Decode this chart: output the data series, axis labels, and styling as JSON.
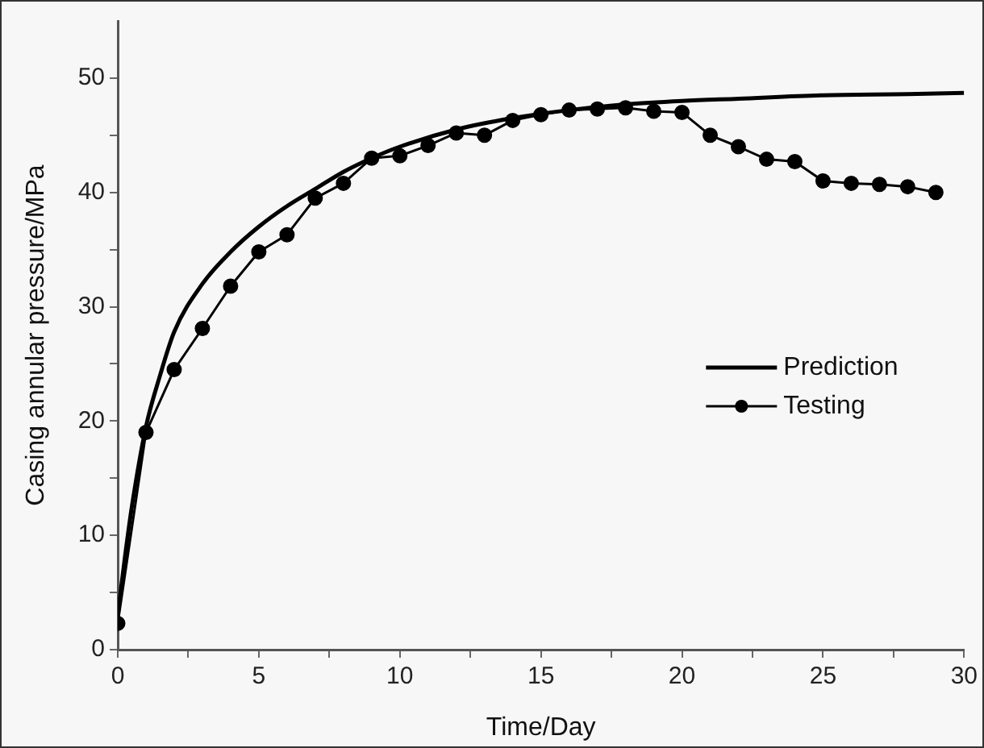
{
  "chart_data": {
    "type": "line",
    "xlabel": "Time/Day",
    "ylabel": "Casing annular pressure/MPa",
    "xlim": [
      0,
      30
    ],
    "ylim": [
      0,
      55
    ],
    "xticks": [
      0,
      {
        "value": 2.5,
        "label": null
      },
      5,
      {
        "value": 7.5,
        "label": null
      },
      10,
      {
        "value": 12.5,
        "label": null
      },
      15,
      {
        "value": 17.5,
        "label": null
      },
      20,
      {
        "value": 22.5,
        "label": null
      },
      25,
      {
        "value": 27.5,
        "label": null
      },
      30
    ],
    "yticks": [
      0,
      {
        "value": 5,
        "label": null
      },
      10,
      {
        "value": 15,
        "label": null
      },
      20,
      {
        "value": 25,
        "label": null
      },
      30,
      {
        "value": 35,
        "label": null
      },
      40,
      {
        "value": 45,
        "label": null
      },
      50
    ],
    "grid": false,
    "legend": "right",
    "series": [
      {
        "name": "Prediction",
        "color": "#000000",
        "marker": "none",
        "x": [
          0,
          0.25,
          0.5,
          1,
          1.5,
          2,
          3,
          4,
          5,
          6,
          7,
          8,
          9,
          10,
          12,
          14,
          16,
          18,
          20,
          22,
          25,
          28,
          30
        ],
        "values": [
          3,
          8,
          12.5,
          19.5,
          24,
          27.8,
          32,
          34.8,
          37,
          38.8,
          40.3,
          41.8,
          43,
          44,
          45.5,
          46.5,
          47.2,
          47.7,
          48,
          48.2,
          48.5,
          48.6,
          48.7
        ]
      },
      {
        "name": "Testing",
        "color": "#000000",
        "marker": "circle",
        "x": [
          0,
          1,
          2,
          3,
          4,
          5,
          6,
          7,
          8,
          9,
          10,
          11,
          12,
          13,
          14,
          15,
          16,
          17,
          18,
          19,
          20,
          21,
          22,
          23,
          24,
          25,
          26,
          27,
          28,
          29
        ],
        "values": [
          2.3,
          19,
          24.5,
          28.1,
          31.8,
          34.8,
          36.3,
          39.5,
          40.8,
          43,
          43.2,
          44.1,
          45.2,
          45,
          46.3,
          46.8,
          47.2,
          47.3,
          47.4,
          47.1,
          47,
          45,
          44,
          42.9,
          42.7,
          41,
          40.8,
          40.7,
          40.5,
          40
        ]
      }
    ]
  }
}
